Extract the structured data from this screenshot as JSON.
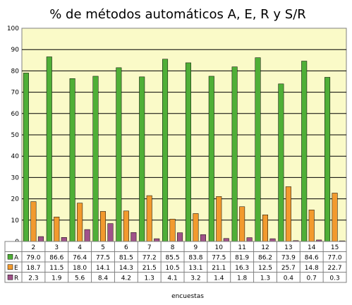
{
  "chart_data": {
    "type": "bar",
    "title": "% de métodos automáticos A, E, R y S/R",
    "xlabel": "encuestas",
    "ylabel": "",
    "ylim": [
      0,
      100
    ],
    "yticks": [
      0,
      10,
      20,
      30,
      40,
      50,
      60,
      70,
      80,
      90,
      100
    ],
    "grid": true,
    "legend": "table-left",
    "categories": [
      "2",
      "3",
      "4",
      "5",
      "6",
      "7",
      "8",
      "9",
      "10",
      "11",
      "12",
      "13",
      "14",
      "15"
    ],
    "series": [
      {
        "name": "A",
        "color": "#4faf37",
        "values": [
          79.0,
          86.6,
          76.4,
          77.5,
          81.5,
          77.2,
          85.5,
          83.8,
          77.5,
          81.9,
          86.2,
          73.9,
          84.6,
          77.0
        ]
      },
      {
        "name": "E",
        "color": "#f29a2e",
        "values": [
          18.7,
          11.5,
          18.0,
          14.1,
          14.3,
          21.5,
          10.5,
          13.1,
          21.1,
          16.3,
          12.5,
          25.7,
          14.8,
          22.7
        ]
      },
      {
        "name": "R",
        "color": "#a0528a",
        "values": [
          2.3,
          1.9,
          5.6,
          8.4,
          4.2,
          1.3,
          4.1,
          3.2,
          1.4,
          1.8,
          1.3,
          0.4,
          0.7,
          0.3
        ]
      }
    ],
    "colors": {
      "plot_background": "#fafac8",
      "gridline": "#000000"
    }
  }
}
